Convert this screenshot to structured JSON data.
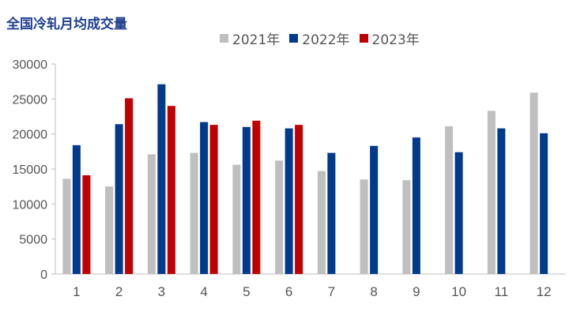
{
  "chart_data": {
    "type": "bar",
    "title": "全国冷轧月均成交量",
    "xlabel": "",
    "ylabel": "",
    "categories": [
      "1",
      "2",
      "3",
      "4",
      "5",
      "6",
      "7",
      "8",
      "9",
      "10",
      "11",
      "12"
    ],
    "series": [
      {
        "name": "2021年",
        "color": "#bfbfbf",
        "values": [
          13600,
          12500,
          17100,
          17300,
          15600,
          16200,
          14700,
          13500,
          13400,
          21100,
          23300,
          25900
        ]
      },
      {
        "name": "2022年",
        "color": "#003a8c",
        "values": [
          18400,
          21400,
          27100,
          21700,
          21000,
          20800,
          17300,
          18300,
          19500,
          17400,
          20800,
          20100
        ]
      },
      {
        "name": "2023年",
        "color": "#c00000",
        "values": [
          14100,
          25100,
          24000,
          21300,
          21900,
          21300,
          null,
          null,
          null,
          null,
          null,
          null
        ]
      }
    ],
    "ylim": [
      0,
      30000
    ],
    "yticks": [
      0,
      5000,
      10000,
      15000,
      20000,
      25000,
      30000
    ],
    "grid": false,
    "legend_position": "top"
  }
}
